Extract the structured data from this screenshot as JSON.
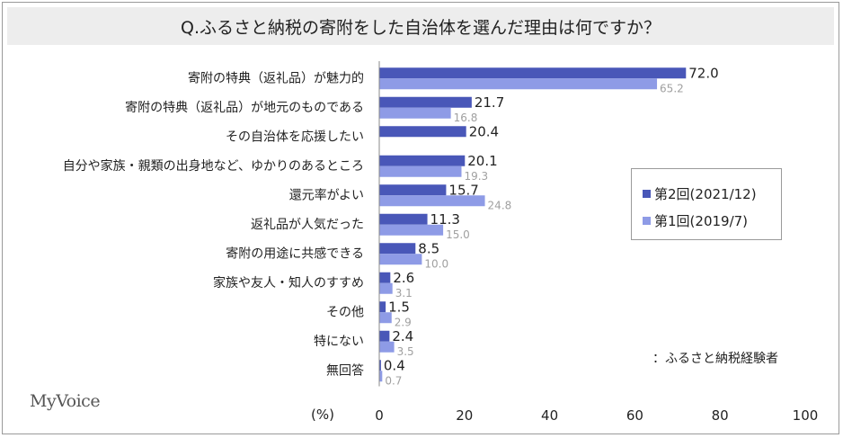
{
  "title": "Q.ふるさと納税の寄附をした自治体を選んだ理由は何ですか？",
  "brand": "MyVoice",
  "note": "：ふるさと納税経験者",
  "unit_label": "(%)",
  "chart_data": {
    "type": "bar",
    "orientation": "horizontal",
    "categories": [
      "寄附の特典（返礼品）が魅力的",
      "寄附の特典（返礼品）が地元のものである",
      "その自治体を応援したい",
      "自分や家族・親類の出身地など、ゆかりのあるところ",
      "還元率がよい",
      "返礼品が人気だった",
      "寄附の用途に共感できる",
      "家族や友人・知人のすすめ",
      "その他",
      "特にない",
      "無回答"
    ],
    "series": [
      {
        "name": "第2回(2021/12)",
        "color": "#4957b8",
        "label_color": "#222222",
        "values": [
          72.0,
          21.7,
          20.4,
          20.1,
          15.7,
          11.3,
          8.5,
          2.6,
          1.5,
          2.4,
          0.4
        ],
        "labels": [
          "72.0",
          "21.7",
          "20.4",
          "20.1",
          "15.7",
          "11.3",
          "8.5",
          "2.6",
          "1.5",
          "2.4",
          "0.4"
        ]
      },
      {
        "name": "第1回(2019/7)",
        "color": "#8e9be6",
        "label_color": "#a0a0a0",
        "values": [
          65.2,
          16.8,
          null,
          19.3,
          24.8,
          15.0,
          10.0,
          3.1,
          2.9,
          3.5,
          0.7
        ],
        "labels": [
          "65.2",
          "16.8",
          "",
          "19.3",
          "24.8",
          "15.0",
          "10.0",
          "3.1",
          "2.9",
          "3.5",
          "0.7"
        ]
      }
    ],
    "x_ticks": [
      "0",
      "20",
      "40",
      "60",
      "80",
      "100"
    ],
    "xlim": [
      0,
      100
    ],
    "grid": false,
    "legend_position": "right"
  }
}
